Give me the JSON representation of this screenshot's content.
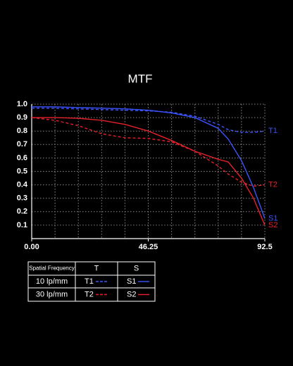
{
  "chart_data": {
    "type": "line",
    "title": "MTF",
    "x": [
      0,
      9.25,
      18.5,
      27.75,
      37,
      46.25,
      55.5,
      64.75,
      74,
      78,
      83.25,
      88,
      92.5
    ],
    "series": [
      {
        "name": "T1",
        "color": "#3a55ff",
        "dashed": true,
        "values": [
          0.97,
          0.97,
          0.965,
          0.96,
          0.955,
          0.95,
          0.94,
          0.91,
          0.85,
          0.81,
          0.79,
          0.79,
          0.8
        ]
      },
      {
        "name": "S1",
        "color": "#3a55ff",
        "dashed": false,
        "values": [
          0.98,
          0.98,
          0.975,
          0.97,
          0.965,
          0.955,
          0.935,
          0.9,
          0.82,
          0.74,
          0.58,
          0.38,
          0.15
        ]
      },
      {
        "name": "T2",
        "color": "#e8202a",
        "dashed": true,
        "values": [
          0.9,
          0.88,
          0.84,
          0.78,
          0.75,
          0.745,
          0.72,
          0.65,
          0.54,
          0.48,
          0.42,
          0.39,
          0.4
        ]
      },
      {
        "name": "S2",
        "color": "#e8202a",
        "dashed": false,
        "values": [
          0.9,
          0.9,
          0.895,
          0.88,
          0.85,
          0.8,
          0.73,
          0.65,
          0.59,
          0.57,
          0.45,
          0.3,
          0.1
        ]
      }
    ],
    "xlim": [
      0,
      92.5
    ],
    "xticks": [
      {
        "value": 0,
        "label": "0.00"
      },
      46.25,
      92.5
    ],
    "xgrid": [
      0,
      9.25,
      18.5,
      27.75,
      37,
      46.25,
      55.5,
      64.75,
      74,
      83.25,
      92.5
    ],
    "ylim": [
      0,
      1
    ],
    "yticks": [
      {
        "value": 1,
        "label": "1.0"
      },
      0.9,
      0.8,
      0.7,
      0.6,
      0.5,
      0.4,
      0.3,
      0.2,
      0.1
    ],
    "grid": true,
    "legend_table": {
      "header": [
        "Spatial Frequency",
        "T",
        "S"
      ],
      "rows": [
        {
          "label": "10 lp/mm",
          "t": 0,
          "s": 1
        },
        {
          "label": "30 lp/mm",
          "t": 2,
          "s": 3
        }
      ]
    }
  }
}
